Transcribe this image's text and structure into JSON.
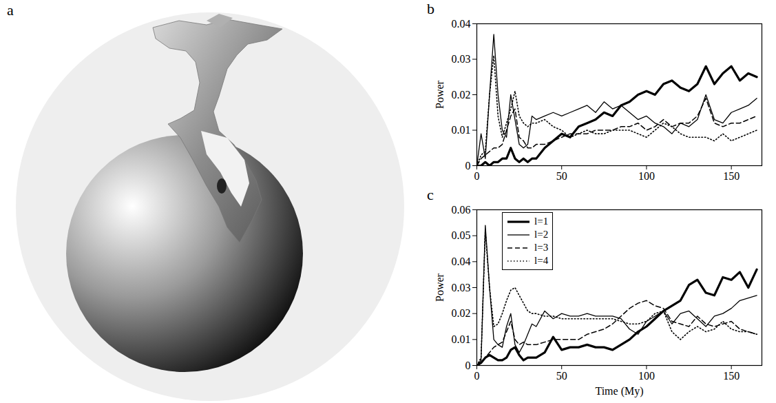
{
  "image": {
    "label": "a"
  },
  "chart_data": [
    {
      "type": "line",
      "label": "b",
      "y_label": "Power",
      "x": [
        0,
        2.5,
        5,
        7.5,
        10,
        12.5,
        15,
        17.5,
        20,
        22.5,
        25,
        27.5,
        30,
        32.5,
        35,
        40,
        45,
        50,
        55,
        60,
        65,
        70,
        75,
        80,
        85,
        90,
        95,
        100,
        105,
        110,
        115,
        120,
        125,
        130,
        135,
        140,
        145,
        150,
        155,
        160,
        165
      ],
      "xlim": [
        0,
        168
      ],
      "xticks": [
        0,
        50,
        100,
        150
      ],
      "ylim": [
        0,
        0.04
      ],
      "yticks": [
        0,
        0.01,
        0.02,
        0.03,
        0.04
      ],
      "series": [
        {
          "name": "l=1",
          "color": "#000000",
          "line_style": "thick",
          "values": [
            0,
            0,
            0.001,
            0,
            0.001,
            0.001,
            0.002,
            0.002,
            0.005,
            0.002,
            0.001,
            0.002,
            0.001,
            0.002,
            0.002,
            0.005,
            0.007,
            0.009,
            0.008,
            0.011,
            0.012,
            0.013,
            0.015,
            0.014,
            0.017,
            0.018,
            0.02,
            0.021,
            0.02,
            0.023,
            0.024,
            0.022,
            0.021,
            0.023,
            0.028,
            0.023,
            0.026,
            0.028,
            0.024,
            0.026,
            0.025
          ]
        },
        {
          "name": "l=2",
          "color": "#000000",
          "line_style": "solid",
          "values": [
            0,
            0.009,
            0.002,
            0.02,
            0.037,
            0.02,
            0.01,
            0.008,
            0.02,
            0.013,
            0.006,
            0.005,
            0.006,
            0.014,
            0.013,
            0.014,
            0.015,
            0.014,
            0.015,
            0.016,
            0.017,
            0.015,
            0.018,
            0.016,
            0.017,
            0.015,
            0.013,
            0.014,
            0.012,
            0.011,
            0.009,
            0.012,
            0.011,
            0.013,
            0.02,
            0.013,
            0.012,
            0.015,
            0.016,
            0.017,
            0.019
          ]
        },
        {
          "name": "l=3",
          "color": "#000000",
          "line_style": "dashed",
          "values": [
            0,
            0.002,
            0.003,
            0.004,
            0.005,
            0.005,
            0.006,
            0.01,
            0.014,
            0.016,
            0.008,
            0.007,
            0.005,
            0.005,
            0.006,
            0.006,
            0.007,
            0.008,
            0.009,
            0.009,
            0.009,
            0.01,
            0.01,
            0.01,
            0.011,
            0.011,
            0.012,
            0.01,
            0.011,
            0.013,
            0.011,
            0.012,
            0.012,
            0.014,
            0.019,
            0.012,
            0.011,
            0.012,
            0.012,
            0.013,
            0.014
          ]
        },
        {
          "name": "l=4",
          "color": "#000000",
          "line_style": "dotted",
          "values": [
            0,
            0.003,
            0.004,
            0.02,
            0.031,
            0.014,
            0.008,
            0.012,
            0.016,
            0.021,
            0.014,
            0.012,
            0.011,
            0.012,
            0.012,
            0.013,
            0.011,
            0.01,
            0.008,
            0.009,
            0.01,
            0.009,
            0.009,
            0.01,
            0.01,
            0.01,
            0.009,
            0.008,
            0.01,
            0.012,
            0.011,
            0.009,
            0.008,
            0.008,
            0.008,
            0.007,
            0.009,
            0.007,
            0.008,
            0.009,
            0.01
          ]
        }
      ]
    },
    {
      "type": "line",
      "label": "c",
      "y_label": "Power",
      "x_label": "Time (My)",
      "legend": "upper left",
      "x": [
        0,
        2.5,
        5,
        7.5,
        10,
        12.5,
        15,
        17.5,
        20,
        22.5,
        25,
        27.5,
        30,
        32.5,
        35,
        40,
        45,
        50,
        55,
        60,
        65,
        70,
        75,
        80,
        85,
        90,
        95,
        100,
        105,
        110,
        115,
        120,
        125,
        130,
        135,
        140,
        145,
        150,
        155,
        160,
        165
      ],
      "xlim": [
        0,
        168
      ],
      "xticks": [
        0,
        50,
        100,
        150
      ],
      "ylim": [
        0,
        0.06
      ],
      "yticks": [
        0,
        0.01,
        0.02,
        0.03,
        0.04,
        0.05,
        0.06
      ],
      "series": [
        {
          "name": "l=1",
          "color": "#000000",
          "line_style": "thick",
          "values": [
            0,
            0.001,
            0.003,
            0.004,
            0.003,
            0.002,
            0.002,
            0.003,
            0.006,
            0.007,
            0.004,
            0.002,
            0.003,
            0.003,
            0.003,
            0.005,
            0.011,
            0.006,
            0.007,
            0.007,
            0.008,
            0.007,
            0.007,
            0.006,
            0.008,
            0.01,
            0.013,
            0.015,
            0.018,
            0.021,
            0.023,
            0.025,
            0.031,
            0.033,
            0.028,
            0.027,
            0.034,
            0.033,
            0.036,
            0.03,
            0.037
          ]
        },
        {
          "name": "l=2",
          "color": "#000000",
          "line_style": "solid",
          "values": [
            0,
            0.002,
            0.054,
            0.03,
            0.01,
            0.008,
            0.007,
            0.015,
            0.02,
            0.008,
            0.005,
            0.008,
            0.012,
            0.016,
            0.015,
            0.021,
            0.018,
            0.02,
            0.019,
            0.019,
            0.02,
            0.019,
            0.019,
            0.019,
            0.018,
            0.014,
            0.012,
            0.017,
            0.019,
            0.021,
            0.016,
            0.02,
            0.021,
            0.018,
            0.015,
            0.019,
            0.02,
            0.022,
            0.025,
            0.026,
            0.027
          ]
        },
        {
          "name": "l=3",
          "color": "#000000",
          "line_style": "dashed",
          "values": [
            0,
            0.001,
            0.003,
            0.005,
            0.007,
            0.008,
            0.009,
            0.013,
            0.017,
            0.01,
            0.008,
            0.009,
            0.008,
            0.008,
            0.008,
            0.009,
            0.01,
            0.01,
            0.01,
            0.01,
            0.012,
            0.013,
            0.014,
            0.016,
            0.019,
            0.022,
            0.024,
            0.025,
            0.023,
            0.022,
            0.017,
            0.016,
            0.015,
            0.019,
            0.016,
            0.015,
            0.016,
            0.017,
            0.014,
            0.013,
            0.012
          ]
        },
        {
          "name": "l=4",
          "color": "#000000",
          "line_style": "dotted",
          "values": [
            0,
            0.003,
            0.052,
            0.03,
            0.015,
            0.016,
            0.02,
            0.025,
            0.029,
            0.03,
            0.027,
            0.024,
            0.021,
            0.02,
            0.02,
            0.019,
            0.019,
            0.018,
            0.018,
            0.018,
            0.018,
            0.018,
            0.018,
            0.018,
            0.017,
            0.016,
            0.016,
            0.017,
            0.02,
            0.021,
            0.013,
            0.01,
            0.013,
            0.015,
            0.013,
            0.014,
            0.017,
            0.014,
            0.013,
            0.013,
            0.012
          ]
        }
      ]
    }
  ]
}
